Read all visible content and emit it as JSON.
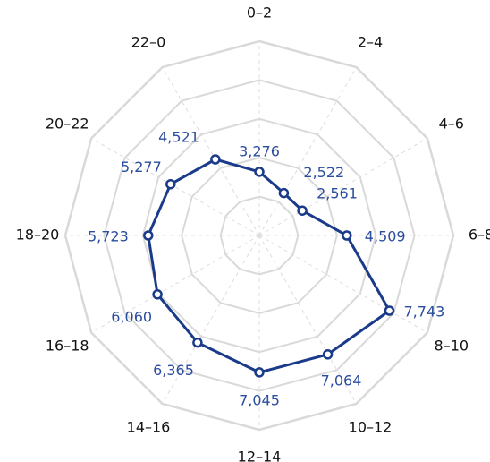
{
  "colors": {
    "grid": "#d9d9d9",
    "spoke": "#dcdcdc",
    "series": "#1a3a8a",
    "label": "#111111",
    "value_label": "#2b4d9e",
    "marker_fill": "#ffffff"
  },
  "chart_data": {
    "type": "radar",
    "categories": [
      "0–2",
      "2–4",
      "4–6",
      "6–8",
      "8–10",
      "10–12",
      "12–14",
      "14–16",
      "16–18",
      "18–20",
      "20–22",
      "22–0"
    ],
    "values": [
      3276,
      2522,
      2561,
      4509,
      7743,
      7064,
      7045,
      6365,
      6060,
      5723,
      5277,
      4521
    ],
    "value_labels": [
      "3,276",
      "2,522",
      "2,561",
      "4,509",
      "7,743",
      "7,064",
      "7,045",
      "6,365",
      "6,060",
      "5,723",
      "5,277",
      "4,521"
    ],
    "range": [
      0,
      10000
    ],
    "ring_count": 5,
    "grid": true,
    "legend": "none"
  }
}
